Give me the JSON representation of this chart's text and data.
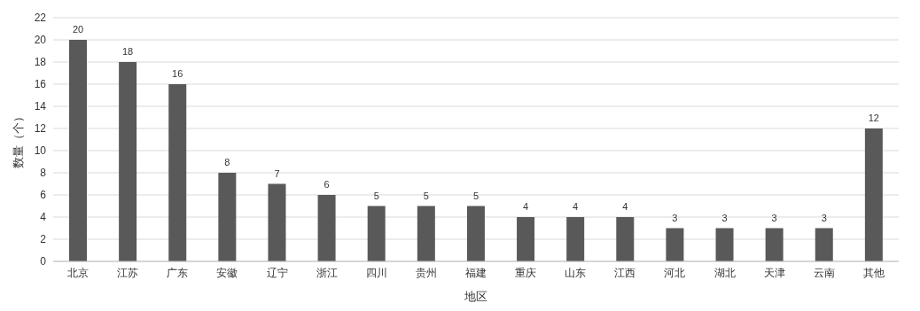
{
  "chart_data": {
    "type": "bar",
    "xlabel": "地区",
    "ylabel": "数量（个）",
    "categories": [
      "北京",
      "江苏",
      "广东",
      "安徽",
      "辽宁",
      "浙江",
      "四川",
      "贵州",
      "福建",
      "重庆",
      "山东",
      "江西",
      "河北",
      "湖北",
      "天津",
      "云南",
      "其他"
    ],
    "values": [
      20,
      18,
      16,
      8,
      7,
      6,
      5,
      5,
      5,
      4,
      4,
      4,
      3,
      3,
      3,
      3,
      12
    ],
    "color": "#595959",
    "ylim": [
      0,
      22
    ],
    "yticks": [
      0,
      2,
      4,
      6,
      8,
      10,
      12,
      14,
      16,
      18,
      20,
      22
    ],
    "grid": "y",
    "data_labels": true
  }
}
